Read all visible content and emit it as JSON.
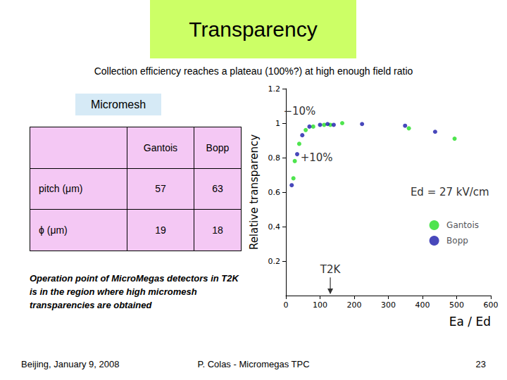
{
  "slide": {
    "title": "Transparency",
    "subtitle": "Collection efficiency reaches a plateau (100%?) at high enough field ratio",
    "label": "Micromesh",
    "table": {
      "columns": [
        "Gantois",
        "Bopp"
      ],
      "rows": [
        {
          "label": "pitch (μm)",
          "values": [
            57,
            63
          ]
        },
        {
          "label": "ϕ (μm)",
          "values": [
            19,
            18
          ]
        }
      ]
    },
    "note": "Operation point of MicroMegas detectors in T2K is in the region where high micromesh transparencies are obtained",
    "footer": {
      "left": "Beijing, January 9, 2008",
      "center": "P. Colas - Micromegas TPC",
      "right": "23"
    }
  },
  "chart_data": {
    "type": "scatter",
    "x_label": "Ea / Ed",
    "y_label": "Relative transparency",
    "xlim": [
      0,
      600
    ],
    "xticks": [
      0,
      100,
      200,
      300,
      400,
      500,
      600
    ],
    "ylim": [
      0,
      1.2
    ],
    "yticks": [
      0.2,
      0.4,
      0.6,
      0.8,
      1,
      1.2
    ],
    "grid": false,
    "legend": "lower right",
    "marker": "circle",
    "series": [
      {
        "name": "Gantois",
        "color": "#22dd22",
        "x": [
          22,
          26,
          39,
          58,
          80,
          112,
          130,
          165,
          360,
          494
        ],
        "values": [
          0.68,
          0.78,
          0.88,
          0.96,
          0.98,
          0.99,
          0.99,
          1.0,
          0.97,
          0.91
        ]
      },
      {
        "name": "Bopp",
        "color": "#1a1aaa",
        "x": [
          17,
          33,
          48,
          69,
          100,
          122,
          140,
          223,
          349,
          437
        ],
        "values": [
          0.64,
          0.82,
          0.93,
          0.98,
          0.99,
          0.995,
          0.99,
          0.995,
          0.985,
          0.95
        ]
      }
    ],
    "annotations": [
      {
        "text": "−10%",
        "x": 40,
        "y": 1.07
      },
      {
        "text": "+10%",
        "x": 90,
        "y": 0.8
      },
      {
        "text": "Ed = 27 kV/cm",
        "x": 480,
        "y": 0.6
      },
      {
        "text": "T2K",
        "x": 130,
        "y": 0.15
      }
    ]
  }
}
